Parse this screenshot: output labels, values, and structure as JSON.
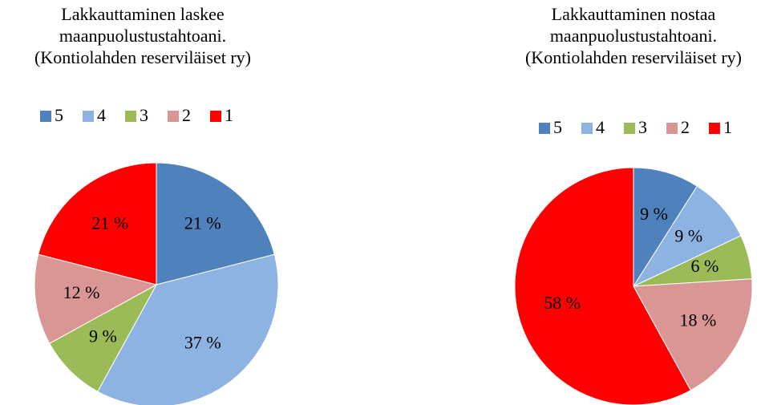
{
  "chart_data": [
    {
      "type": "pie",
      "title": [
        "Lakkauttaminen laskee",
        "maanpuolustustahtoani.",
        "(Kontiolahden reserviläiset ry)"
      ],
      "categories": [
        "5",
        "4",
        "3",
        "2",
        "1"
      ],
      "values": [
        21,
        37,
        9,
        12,
        21
      ],
      "value_labels": [
        "21 %",
        "37 %",
        "9 %",
        "12 %",
        "21 %"
      ],
      "colors": [
        "#4f81bd",
        "#8db3e2",
        "#9bbb59",
        "#d99694",
        "#ff0000"
      ]
    },
    {
      "type": "pie",
      "title": [
        "Lakkauttaminen nostaa",
        "maanpuolustustahtoani.",
        "(Kontiolahden reserviläiset ry)"
      ],
      "categories": [
        "5",
        "4",
        "3",
        "2",
        "1"
      ],
      "values": [
        9,
        9,
        6,
        18,
        58
      ],
      "value_labels": [
        "9 %",
        "9 %",
        "6 %",
        "18 %",
        "58 %"
      ],
      "colors": [
        "#4f81bd",
        "#8db3e2",
        "#9bbb59",
        "#d99694",
        "#ff0000"
      ]
    }
  ]
}
